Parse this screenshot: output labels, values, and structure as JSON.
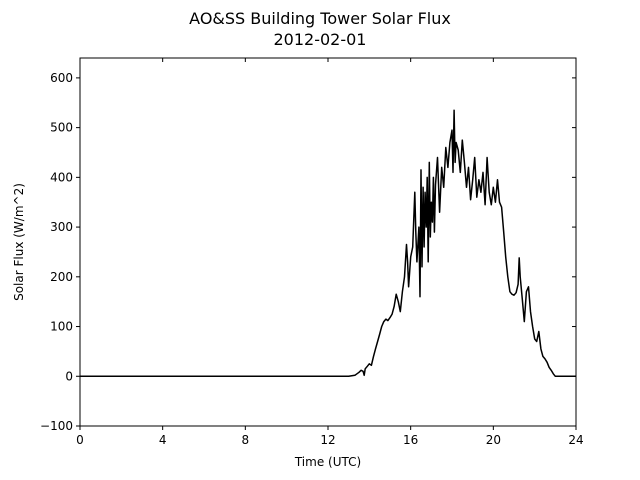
{
  "chart_data": {
    "type": "line",
    "title": "AO&SS Building Tower Solar Flux",
    "subtitle": "2012-02-01",
    "xlabel": "Time (UTC)",
    "ylabel": "Solar Flux (W/m^2)",
    "xlim": [
      0,
      24
    ],
    "ylim": [
      -100,
      640
    ],
    "x_ticks": [
      "0",
      "4",
      "8",
      "12",
      "16",
      "20",
      "24"
    ],
    "y_ticks": [
      "−100",
      "0",
      "100",
      "200",
      "300",
      "400",
      "500",
      "600"
    ],
    "grid": false,
    "line_color": "#000000",
    "series": [
      {
        "x": [
          0,
          2,
          4,
          6,
          8,
          10,
          12,
          13.0,
          13.3,
          13.5,
          13.6,
          13.7,
          13.75,
          13.8,
          13.9,
          14.0,
          14.1,
          14.2,
          14.3,
          14.4,
          14.5,
          14.6,
          14.7,
          14.8,
          14.9,
          15.0,
          15.1,
          15.2,
          15.3,
          15.4,
          15.5,
          15.6,
          15.7,
          15.8,
          15.85,
          15.9,
          16.0,
          16.1,
          16.2,
          16.25,
          16.3,
          16.4,
          16.45,
          16.5,
          16.55,
          16.6,
          16.65,
          16.7,
          16.75,
          16.8,
          16.85,
          16.9,
          16.95,
          17.0,
          17.05,
          17.1,
          17.15,
          17.2,
          17.3,
          17.4,
          17.5,
          17.6,
          17.7,
          17.8,
          17.9,
          18.0,
          18.05,
          18.1,
          18.15,
          18.2,
          18.3,
          18.4,
          18.5,
          18.6,
          18.7,
          18.8,
          18.9,
          19.0,
          19.1,
          19.2,
          19.3,
          19.4,
          19.5,
          19.6,
          19.7,
          19.8,
          19.9,
          20.0,
          20.1,
          20.2,
          20.3,
          20.4,
          20.5,
          20.6,
          20.7,
          20.8,
          20.9,
          21.0,
          21.1,
          21.2,
          21.25,
          21.3,
          21.4,
          21.5,
          21.6,
          21.7,
          21.8,
          21.9,
          22.0,
          22.1,
          22.2,
          22.3,
          22.4,
          22.5,
          22.6,
          22.7,
          22.8,
          22.9,
          23.0,
          23.1,
          23.2,
          23.3,
          23.5,
          23.7,
          24.0
        ],
        "y": [
          0,
          0,
          0,
          0,
          0,
          0,
          0,
          0,
          2,
          8,
          12,
          10,
          2,
          15,
          20,
          25,
          22,
          40,
          55,
          70,
          85,
          100,
          110,
          115,
          112,
          118,
          125,
          140,
          165,
          150,
          130,
          170,
          200,
          265,
          230,
          180,
          240,
          260,
          370,
          290,
          230,
          300,
          160,
          415,
          220,
          380,
          260,
          370,
          300,
          400,
          230,
          430,
          280,
          350,
          310,
          400,
          290,
          385,
          440,
          330,
          420,
          380,
          460,
          420,
          470,
          495,
          410,
          535,
          430,
          470,
          455,
          410,
          475,
          430,
          380,
          420,
          355,
          395,
          440,
          360,
          395,
          370,
          410,
          345,
          440,
          370,
          345,
          380,
          350,
          395,
          350,
          340,
          290,
          240,
          200,
          170,
          165,
          163,
          168,
          185,
          238,
          200,
          155,
          110,
          170,
          180,
          130,
          100,
          75,
          70,
          90,
          55,
          40,
          35,
          28,
          18,
          12,
          5,
          0,
          0,
          0,
          0,
          0,
          0,
          0
        ]
      }
    ]
  }
}
